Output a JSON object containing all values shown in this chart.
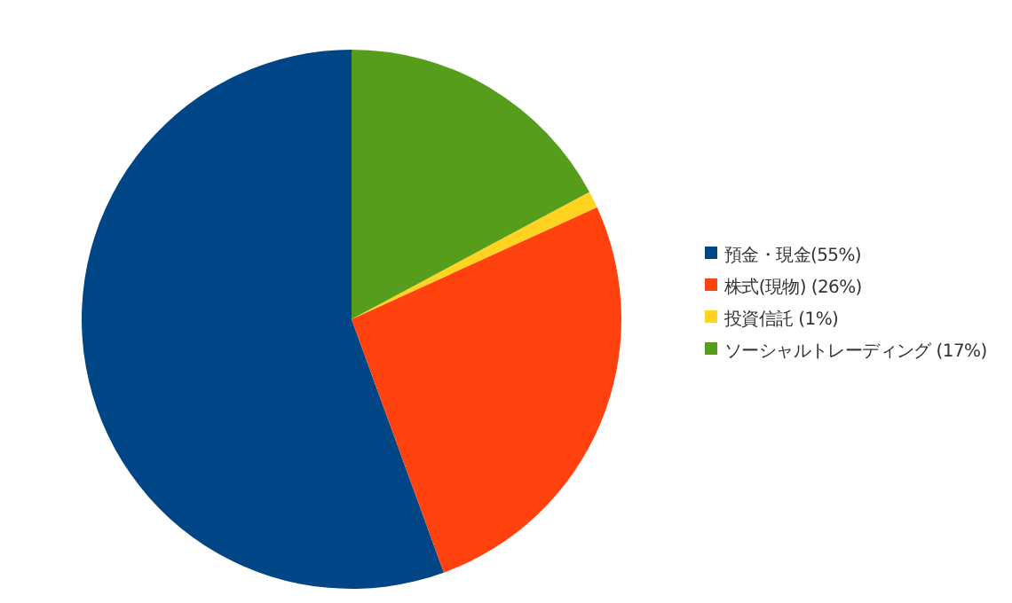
{
  "chart_data": {
    "type": "pie",
    "categories": [
      "預金・現金(55%)",
      "株式(現物) (26%)",
      "投資信託 (1%)",
      "ソーシャルトレーディング (17%)"
    ],
    "values": [
      55,
      26,
      1,
      17
    ],
    "colors": [
      "#004586",
      "#ff420e",
      "#ffd320",
      "#579d1c"
    ],
    "legend": "right"
  }
}
